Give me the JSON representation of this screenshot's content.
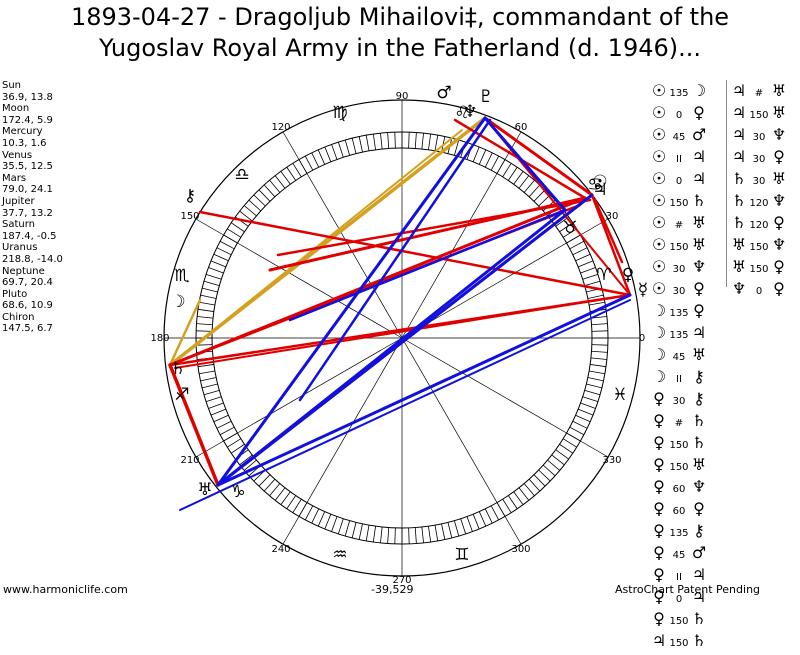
{
  "title": {
    "line1": "1893-04-27 - Dragoljub Mihailovi‡, commandant of the",
    "line2": "Yugoslav Royal Army in the Fatherland (d. 1946)..."
  },
  "planet_positions": [
    {
      "name": "Sun",
      "value": "36.9, 13.8"
    },
    {
      "name": "Moon",
      "value": "172.4, 5.9"
    },
    {
      "name": "Mercury",
      "value": "10.3, 1.6"
    },
    {
      "name": "Venus",
      "value": "35.5, 12.5"
    },
    {
      "name": "Mars",
      "value": "79.0, 24.1"
    },
    {
      "name": "Jupiter",
      "value": "37.7, 13.2"
    },
    {
      "name": "Saturn",
      "value": "187.4, -0.5"
    },
    {
      "name": "Uranus",
      "value": "218.8, -14.0"
    },
    {
      "name": "Neptune",
      "value": "69.7, 20.4"
    },
    {
      "name": "Pluto",
      "value": "68.6, 10.9"
    },
    {
      "name": "Chiron",
      "value": "147.5, 6.7"
    }
  ],
  "degree_labels": [
    "0",
    "30",
    "60",
    "90",
    "120",
    "150",
    "180",
    "210",
    "240",
    "270",
    "300",
    "330"
  ],
  "zodiac_glyphs": [
    "♈",
    "♉",
    "♊",
    "♋",
    "♌",
    "♍",
    "♎",
    "♏",
    "♐",
    "♑",
    "♒",
    "♓"
  ],
  "planet_glyphs": {
    "Sun": "☉",
    "Moon": "☽",
    "Mercury": "☿",
    "Venus": "♀",
    "Mars": "♂",
    "Jupiter": "♃",
    "Saturn": "♄",
    "Uranus": "♅",
    "Neptune": "♆",
    "Pluto": "♇",
    "Chiron": "⚷"
  },
  "aspects_col1": [
    [
      "Sun",
      "135",
      "Moon"
    ],
    [
      "Sun",
      "0",
      "Venus"
    ],
    [
      "Sun",
      "45",
      "Mars"
    ],
    [
      "Sun",
      "II",
      "Jupiter"
    ],
    [
      "Sun",
      "0",
      "Jupiter"
    ],
    [
      "Sun",
      "150",
      "Saturn"
    ],
    [
      "Sun",
      "#",
      "Uranus"
    ],
    [
      "Sun",
      "150",
      "Uranus"
    ],
    [
      "Sun",
      "30",
      "Neptune"
    ],
    [
      "Sun",
      "30",
      "Venus"
    ],
    [
      "Moon",
      "135",
      "Venus"
    ],
    [
      "Moon",
      "135",
      "Jupiter"
    ],
    [
      "Moon",
      "45",
      "Uranus"
    ],
    [
      "Moon",
      "II",
      "Chiron"
    ],
    [
      "Venus",
      "30",
      "Chiron"
    ],
    [
      "Venus",
      "#",
      "Saturn"
    ],
    [
      "Venus",
      "150",
      "Saturn"
    ],
    [
      "Venus",
      "150",
      "Uranus"
    ],
    [
      "Venus",
      "60",
      "Neptune"
    ],
    [
      "Venus",
      "60",
      "Venus"
    ],
    [
      "Venus",
      "135",
      "Chiron"
    ],
    [
      "Venus",
      "45",
      "Mars"
    ],
    [
      "Venus",
      "II",
      "Jupiter"
    ],
    [
      "Venus",
      "0",
      "Jupiter"
    ],
    [
      "Venus",
      "150",
      "Saturn"
    ],
    [
      "Jupiter",
      "150",
      "Saturn"
    ]
  ],
  "aspects_col2": [
    [
      "Jupiter",
      "#",
      "Uranus"
    ],
    [
      "Jupiter",
      "150",
      "Uranus"
    ],
    [
      "Jupiter",
      "30",
      "Neptune"
    ],
    [
      "Jupiter",
      "30",
      "Venus"
    ],
    [
      "Saturn",
      "30",
      "Uranus"
    ],
    [
      "Saturn",
      "120",
      "Neptune"
    ],
    [
      "Saturn",
      "120",
      "Venus"
    ],
    [
      "Uranus",
      "150",
      "Neptune"
    ],
    [
      "Uranus",
      "150",
      "Venus"
    ],
    [
      "Neptune",
      "0",
      "Venus"
    ]
  ],
  "colors": {
    "red": "#e00000",
    "blue": "#1010e0",
    "gold": "#d4a020",
    "ticks": "#000000"
  },
  "footer": {
    "left": "www.harmoniclife.com",
    "center": "-39,529",
    "right": "AstroChart Patent Pending"
  }
}
